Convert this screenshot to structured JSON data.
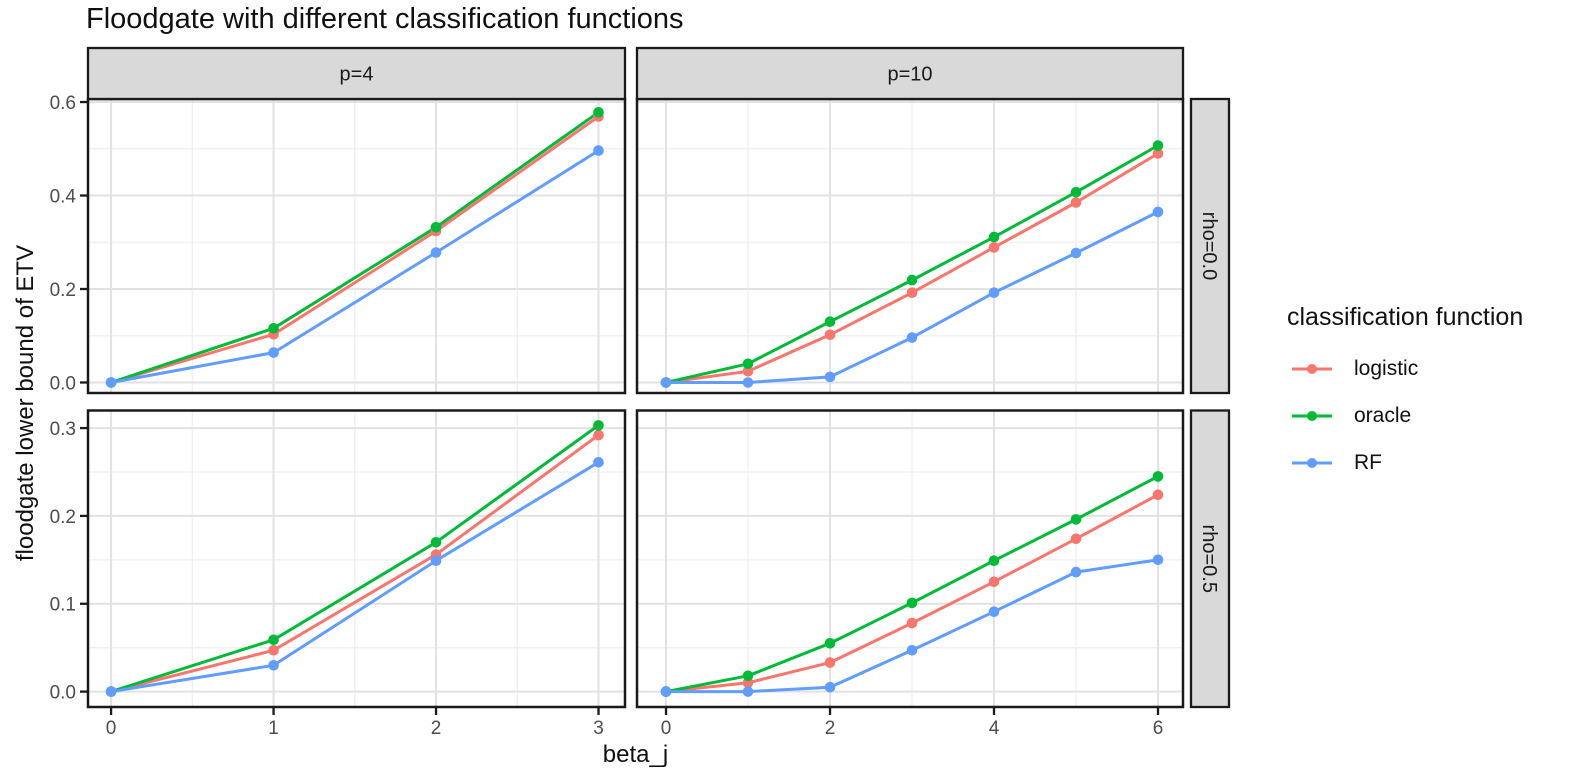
{
  "title": "Floodgate with different classification functions",
  "legend": {
    "title": "classification function",
    "entries": [
      {
        "label": "logistic",
        "color": "#F8766D"
      },
      {
        "label": "oracle",
        "color": "#00BA38"
      },
      {
        "label": "RF",
        "color": "#619CFF"
      }
    ]
  },
  "style": {
    "strip_fill": "#D9D9D9",
    "strip_border": "#1A1A1A",
    "panel_border": "#1A1A1A",
    "grid_major": "#E2E2E2",
    "grid_minor": "#EFEFEF",
    "tick_color": "#1A1A1A",
    "tick_label_color": "#4D4D4D"
  },
  "chart_data": {
    "type": "line",
    "title": "Floodgate with different classification functions",
    "x_axis_title": "beta_j",
    "y_axis_title": "floodgate lower bound of ETV",
    "legend_position": "right",
    "grid": true,
    "facet_cols": [
      {
        "label": "p=4",
        "xlim": [
          -0.142,
          3.163
        ],
        "x_ticks": [
          {
            "v": 0,
            "label": "0"
          },
          {
            "v": 1,
            "label": "1"
          },
          {
            "v": 2,
            "label": "2"
          },
          {
            "v": 3,
            "label": "3"
          }
        ],
        "x_minor": [
          0.5,
          1.5,
          2.5
        ]
      },
      {
        "label": "p=10",
        "xlim": [
          -0.354,
          6.305
        ],
        "x_ticks": [
          {
            "v": 0,
            "label": "0"
          },
          {
            "v": 2,
            "label": "2"
          },
          {
            "v": 4,
            "label": "4"
          },
          {
            "v": 6,
            "label": "6"
          }
        ],
        "x_minor": [
          1,
          3,
          5
        ]
      }
    ],
    "facet_rows": [
      {
        "label": "rho=0.0",
        "ylim": [
          -0.0225,
          0.6065
        ],
        "y_ticks": [
          {
            "v": 0,
            "label": "0.0"
          },
          {
            "v": 0.2,
            "label": "0.2"
          },
          {
            "v": 0.4,
            "label": "0.4"
          },
          {
            "v": 0.6,
            "label": "0.6"
          }
        ],
        "y_minor": [
          0.1,
          0.3,
          0.5
        ]
      },
      {
        "label": "rho=0.5",
        "ylim": [
          -0.0175,
          0.32
        ],
        "y_ticks": [
          {
            "v": 0,
            "label": "0.0"
          },
          {
            "v": 0.1,
            "label": "0.1"
          },
          {
            "v": 0.2,
            "label": "0.2"
          },
          {
            "v": 0.3,
            "label": "0.3"
          }
        ],
        "y_minor": [
          0.05,
          0.15,
          0.25
        ]
      }
    ],
    "series_colors": {
      "logistic": "#F8766D",
      "oracle": "#00BA38",
      "RF": "#619CFF"
    },
    "panels": [
      {
        "col": "p=4",
        "row": "rho=0.0",
        "x": [
          0,
          1,
          2,
          3
        ],
        "series": [
          {
            "name": "logistic",
            "values": [
              0,
              0.103,
              0.324,
              0.569
            ]
          },
          {
            "name": "oracle",
            "values": [
              0,
              0.116,
              0.332,
              0.578
            ]
          },
          {
            "name": "RF",
            "values": [
              0,
              0.064,
              0.278,
              0.496
            ]
          }
        ]
      },
      {
        "col": "p=10",
        "row": "rho=0.0",
        "x": [
          0,
          1,
          2,
          3,
          4,
          5,
          6
        ],
        "series": [
          {
            "name": "logistic",
            "values": [
              0,
              0.024,
              0.102,
              0.192,
              0.289,
              0.385,
              0.49
            ]
          },
          {
            "name": "oracle",
            "values": [
              0,
              0.04,
              0.13,
              0.219,
              0.311,
              0.407,
              0.507
            ]
          },
          {
            "name": "RF",
            "values": [
              0,
              0.0,
              0.012,
              0.096,
              0.192,
              0.277,
              0.365
            ]
          }
        ]
      },
      {
        "col": "p=4",
        "row": "rho=0.5",
        "x": [
          0,
          1,
          2,
          3
        ],
        "series": [
          {
            "name": "logistic",
            "values": [
              0,
              0.047,
              0.156,
              0.292
            ]
          },
          {
            "name": "oracle",
            "values": [
              0,
              0.059,
              0.17,
              0.303
            ]
          },
          {
            "name": "RF",
            "values": [
              0,
              0.03,
              0.149,
              0.261
            ]
          }
        ]
      },
      {
        "col": "p=10",
        "row": "rho=0.5",
        "x": [
          0,
          1,
          2,
          3,
          4,
          5,
          6
        ],
        "series": [
          {
            "name": "logistic",
            "values": [
              0,
              0.01,
              0.033,
              0.078,
              0.125,
              0.174,
              0.224
            ]
          },
          {
            "name": "oracle",
            "values": [
              0,
              0.018,
              0.055,
              0.101,
              0.149,
              0.196,
              0.245
            ]
          },
          {
            "name": "RF",
            "values": [
              0,
              0.0,
              0.005,
              0.047,
              0.091,
              0.136,
              0.15
            ]
          }
        ]
      }
    ]
  }
}
